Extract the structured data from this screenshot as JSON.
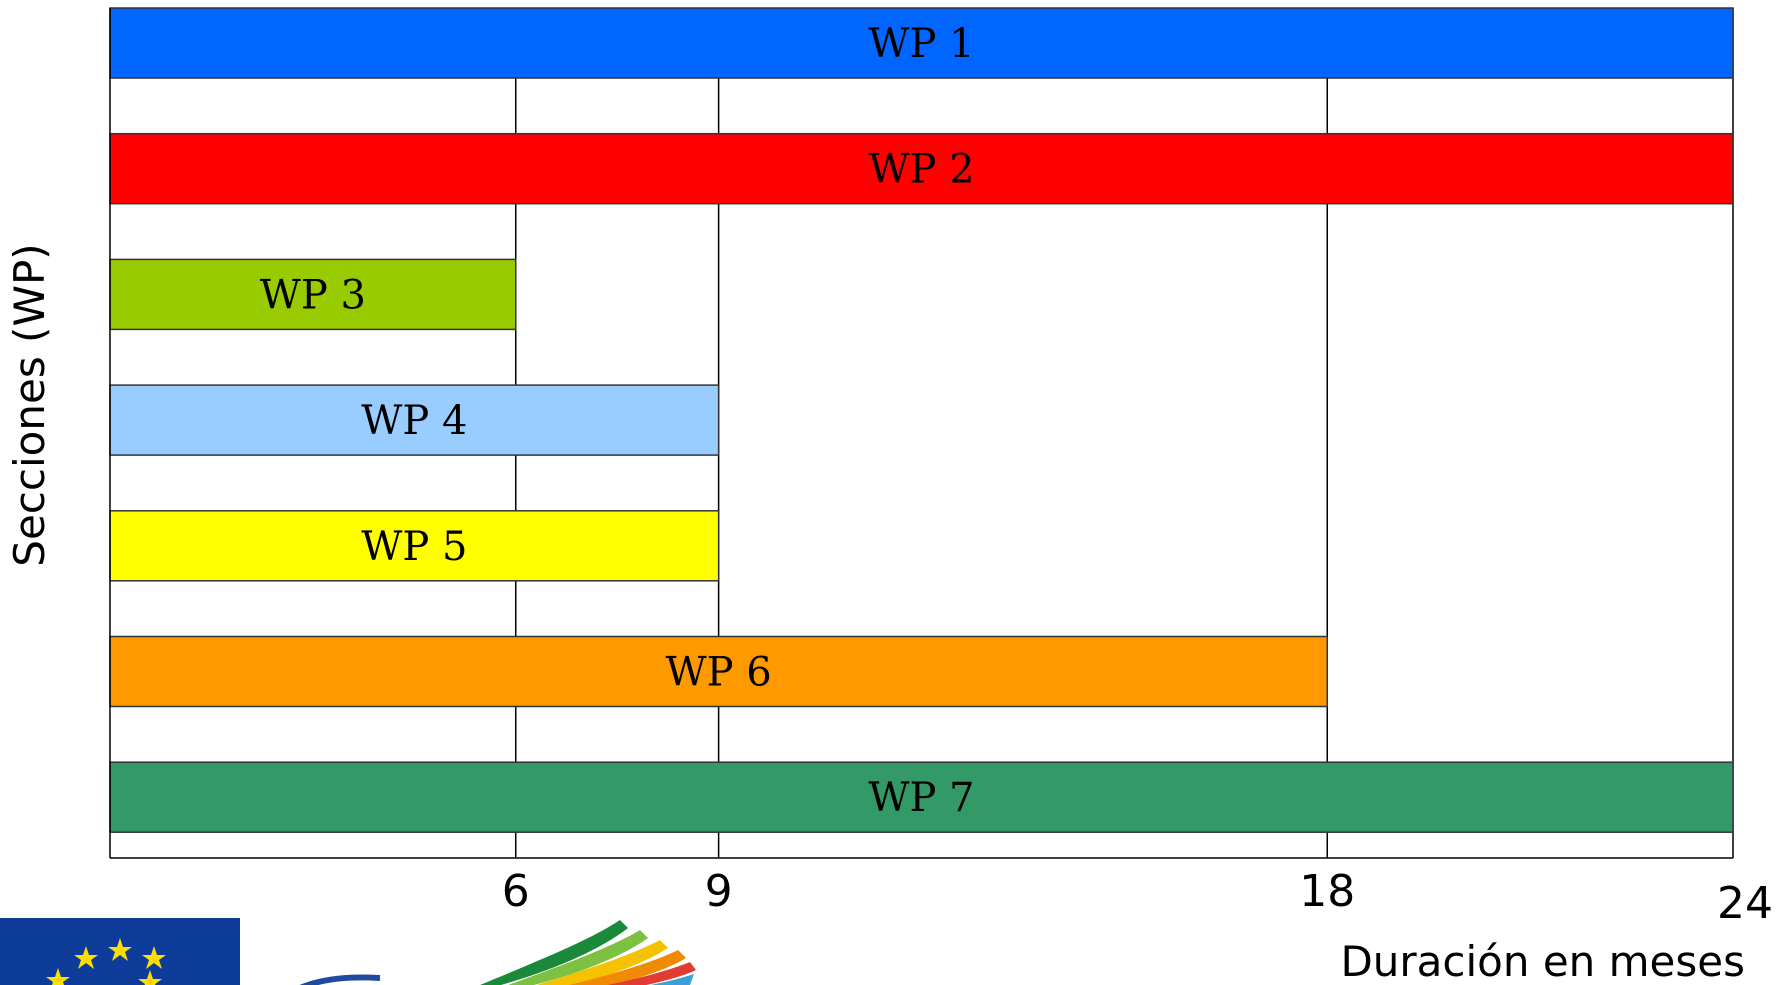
{
  "chart_data": {
    "type": "bar",
    "orientation": "horizontal",
    "ylabel": "Secciones (WP)",
    "xlabel": "Duración en meses",
    "xlim": [
      0,
      24
    ],
    "xticks": [
      6,
      9,
      18,
      24
    ],
    "gridlines_x": [
      6,
      9,
      18
    ],
    "categories": [
      "WP 1",
      "WP 2",
      "WP 3",
      "WP 4",
      "WP 5",
      "WP 6",
      "WP 7"
    ],
    "values": [
      24,
      24,
      6,
      9,
      9,
      18,
      24
    ],
    "colors": [
      "#0066ff",
      "#ff0000",
      "#99cc00",
      "#99ccff",
      "#ffff00",
      "#ff9900",
      "#339966"
    ]
  },
  "logos": [
    {
      "name": "eu-flag-logo",
      "colors": [
        "#0d3c9a",
        "#ffdd00"
      ]
    },
    {
      "name": "program-logo",
      "colors": [
        "#1a8a3a",
        "#7cc142",
        "#f6c200",
        "#f08a00",
        "#e03c31",
        "#3aa0d8",
        "#1f4aa0"
      ]
    }
  ]
}
